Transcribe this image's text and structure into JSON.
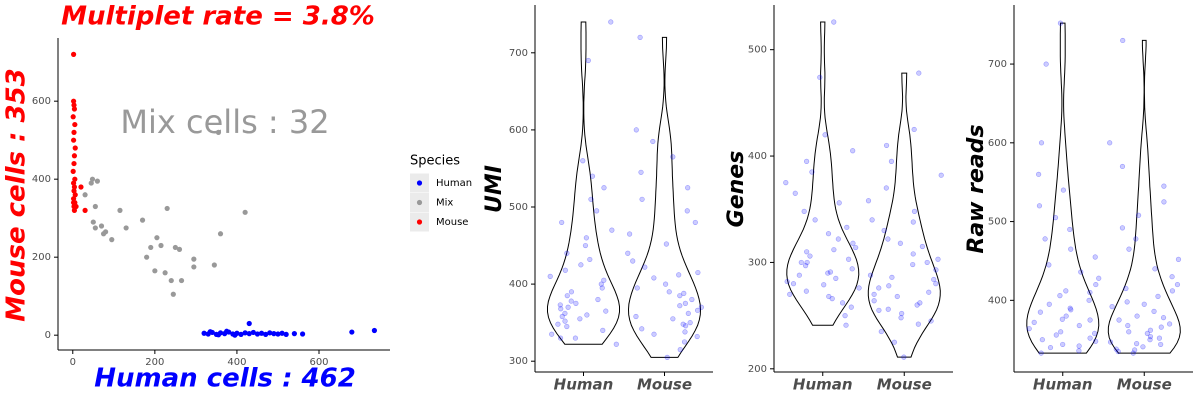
{
  "chart_data": [
    {
      "type": "scatter",
      "title": "Multiplet rate = 3.8%",
      "title_color": "#ff0000",
      "xlabel": "Human cells : 462",
      "xlabel_color": "#0000ff",
      "ylabel": "Mouse cells :  353",
      "ylabel_color": "#ff0000",
      "annotation": "Mix cells :  32",
      "annotation_color": "#999999",
      "legend_title": "Species",
      "xlim": [
        -36,
        773
      ],
      "ylim": [
        -38,
        762
      ],
      "xticks": [
        0,
        200,
        400,
        600
      ],
      "yticks": [
        0,
        200,
        400,
        600
      ],
      "series": [
        {
          "name": "Human",
          "color": "#0000ff",
          "x": [
            320,
            330,
            340,
            350,
            360,
            370,
            380,
            390,
            400,
            410,
            420,
            430,
            440,
            450,
            460,
            470,
            480,
            490,
            500,
            510,
            520,
            540,
            560,
            680,
            735,
            430,
            335,
            355,
            375,
            395
          ],
          "values": [
            5,
            3,
            7,
            2,
            6,
            4,
            8,
            3,
            5,
            2,
            6,
            4,
            7,
            3,
            5,
            2,
            6,
            4,
            3,
            5,
            2,
            4,
            3,
            8,
            12,
            30,
            9,
            1,
            10,
            0
          ]
        },
        {
          "name": "Mix",
          "color": "#999999",
          "x": [
            48,
            45,
            60,
            30,
            55,
            50,
            70,
            55,
            80,
            75,
            95,
            115,
            130,
            170,
            180,
            190,
            200,
            205,
            215,
            225,
            230,
            240,
            245,
            250,
            260,
            265,
            295,
            295,
            345,
            360,
            420,
            355
          ],
          "values": [
            400,
            390,
            395,
            360,
            330,
            290,
            280,
            275,
            265,
            260,
            245,
            320,
            275,
            295,
            200,
            225,
            165,
            250,
            230,
            160,
            325,
            140,
            105,
            225,
            220,
            140,
            175,
            195,
            180,
            260,
            315,
            520
          ]
        },
        {
          "name": "Mouse",
          "color": "#ff0000",
          "x": [
            2,
            3,
            4,
            1,
            5,
            3,
            2,
            6,
            4,
            3,
            1,
            5,
            2,
            4,
            3,
            6,
            2,
            5,
            3,
            4,
            2,
            8,
            20,
            30,
            2
          ],
          "values": [
            600,
            590,
            580,
            560,
            540,
            520,
            500,
            480,
            460,
            440,
            420,
            400,
            390,
            380,
            370,
            360,
            350,
            340,
            330,
            320,
            720,
            330,
            380,
            320,
            340
          ]
        }
      ]
    },
    {
      "type": "violin",
      "ylabel": "UMI",
      "categories": [
        "Human",
        "Mouse"
      ],
      "color": "#0000ff",
      "ylim": [
        286,
        762
      ],
      "yticks": [
        300,
        400,
        500,
        600,
        700
      ],
      "series": [
        {
          "values": [
            322,
            330,
            335,
            340,
            345,
            348,
            352,
            355,
            358,
            360,
            362,
            365,
            368,
            370,
            373,
            375,
            378,
            380,
            385,
            390,
            395,
            400,
            405,
            410,
            418,
            425,
            432,
            440,
            450,
            460,
            470,
            480,
            495,
            510,
            525,
            540,
            560,
            690,
            740,
            330
          ]
        },
        {
          "values": [
            305,
            315,
            325,
            332,
            338,
            342,
            346,
            350,
            355,
            358,
            362,
            366,
            370,
            375,
            380,
            385,
            390,
            395,
            400,
            408,
            415,
            422,
            430,
            440,
            452,
            465,
            480,
            495,
            510,
            525,
            545,
            565,
            585,
            600,
            720,
            335,
            348,
            372,
            388,
            412
          ]
        }
      ]
    },
    {
      "type": "violin",
      "ylabel": "Genes",
      "categories": [
        "Human",
        "Mouse"
      ],
      "color": "#0000ff",
      "ylim": [
        197,
        542
      ],
      "yticks": [
        200,
        300,
        400,
        500
      ],
      "series": [
        {
          "values": [
            241,
            250,
            258,
            262,
            266,
            270,
            273,
            276,
            279,
            282,
            285,
            288,
            291,
            294,
            297,
            300,
            303,
            306,
            310,
            314,
            318,
            322,
            327,
            333,
            340,
            348,
            356,
            365,
            375,
            385,
            395,
            405,
            420,
            474,
            526,
            268,
            290,
            300,
            312,
            280
          ]
        },
        {
          "values": [
            211,
            225,
            235,
            242,
            248,
            252,
            256,
            260,
            264,
            268,
            272,
            276,
            280,
            284,
            288,
            293,
            298,
            303,
            308,
            315,
            322,
            330,
            338,
            348,
            358,
            370,
            382,
            395,
            410,
            425,
            478,
            262,
            270,
            278,
            286,
            300,
            245,
            255,
            318,
            340
          ]
        }
      ]
    },
    {
      "type": "violin",
      "ylabel": "Raw reads",
      "categories": [
        "Human",
        "Mouse"
      ],
      "color": "#0000ff",
      "ylim": [
        309,
        775
      ],
      "yticks": [
        400,
        500,
        600,
        700
      ],
      "series": [
        {
          "values": [
            333,
            336,
            340,
            344,
            348,
            352,
            356,
            360,
            364,
            368,
            372,
            376,
            380,
            385,
            390,
            395,
            400,
            406,
            412,
            420,
            428,
            436,
            445,
            455,
            465,
            478,
            490,
            505,
            520,
            540,
            560,
            600,
            700,
            752,
            342,
            350,
            358,
            375,
            388,
            410
          ]
        },
        {
          "values": [
            333,
            335,
            338,
            341,
            344,
            347,
            350,
            354,
            358,
            362,
            366,
            370,
            375,
            380,
            386,
            392,
            398,
            405,
            412,
            420,
            430,
            440,
            452,
            465,
            478,
            492,
            508,
            525,
            545,
            570,
            600,
            730,
            337,
            345,
            352,
            360,
            368,
            378,
            395,
            415
          ]
        }
      ]
    }
  ]
}
